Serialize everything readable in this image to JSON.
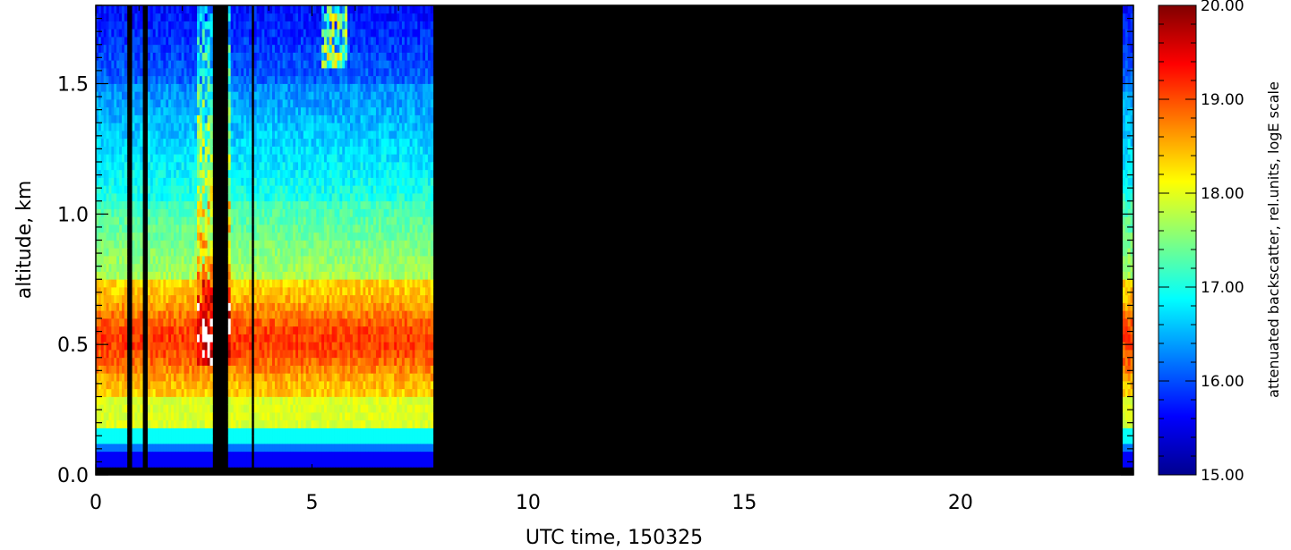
{
  "chart_data": {
    "type": "heatmap",
    "title": "",
    "xlabel": "UTC time, 150325",
    "ylabel": "altitude, km",
    "xlim": [
      0,
      24
    ],
    "ylim": [
      0,
      1.8
    ],
    "x_ticks": [
      0,
      5,
      10,
      15,
      20
    ],
    "x_tick_labels": [
      "0",
      "5",
      "10",
      "15",
      "20"
    ],
    "y_ticks": [
      0.0,
      0.5,
      1.0,
      1.5
    ],
    "y_tick_labels": [
      "0.0",
      "0.5",
      "1.0",
      "1.5"
    ],
    "colorbar": {
      "label": "attenuated backscatter, rel.units, logE scale",
      "range": [
        15,
        20
      ],
      "ticks": [
        15,
        16,
        17,
        18,
        19,
        20
      ],
      "tick_labels": [
        "15.00",
        "16.00",
        "17.00",
        "18.00",
        "19.00",
        "20.00"
      ],
      "colormap": "jet"
    },
    "data_time_ranges": [
      [
        0,
        7.8
      ],
      [
        23.75,
        24
      ]
    ],
    "no_data_color": "#000000",
    "grid": false,
    "legend": "colorbar-right"
  }
}
